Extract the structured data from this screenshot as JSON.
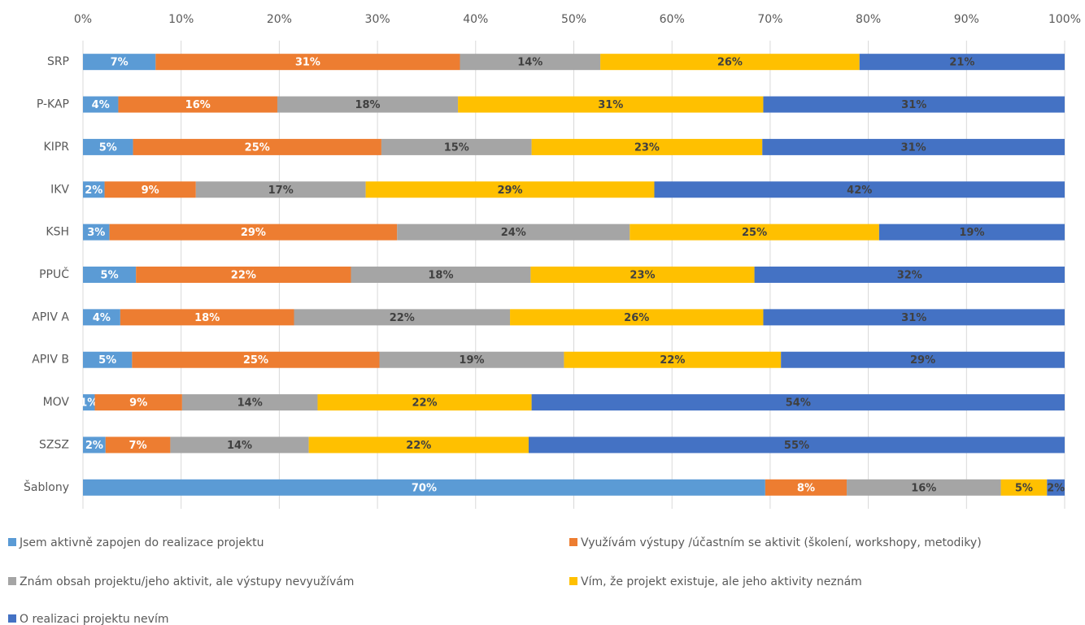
{
  "chart_data": {
    "type": "stacked_barh",
    "categories": [
      "SRP",
      "P-KAP",
      "KIPR",
      "IKV",
      "KSH",
      "PPUČ",
      "APIV A",
      "APIV B",
      "MOV",
      "SZSZ",
      "Šablony"
    ],
    "series": [
      {
        "name": "Jsem aktivně zapojen do realizace projektu",
        "color": "#5b9bd5",
        "label_color": "#ffffff",
        "values": [
          7.4,
          3.6,
          5.1,
          2.2,
          2.7,
          5.4,
          3.8,
          5.0,
          1.2,
          2.3,
          69.5
        ],
        "value_labels": [
          "7%",
          "4%",
          "5%",
          "2%",
          "3%",
          "5%",
          "4%",
          "5%",
          "1%",
          "2%",
          "70%"
        ]
      },
      {
        "name": "Využívám výstupy /účastním se aktivit (školení, workshopy, metodiky)",
        "color": "#ed7d31",
        "label_color": "#ffffff",
        "values": [
          31.0,
          16.2,
          25.3,
          9.3,
          29.3,
          21.9,
          17.7,
          25.2,
          8.9,
          6.6,
          8.3
        ],
        "value_labels": [
          "31%",
          "16%",
          "25%",
          "9%",
          "29%",
          "22%",
          "18%",
          "25%",
          "9%",
          "7%",
          "8%"
        ]
      },
      {
        "name": "Znám obsah projektu/jeho aktivit, ale výstupy nevyužívám",
        "color": "#a5a5a5",
        "label_color": "#404040",
        "values": [
          14.3,
          18.4,
          15.3,
          17.3,
          23.7,
          18.3,
          22.0,
          18.8,
          13.8,
          14.1,
          15.7
        ],
        "value_labels": [
          "14%",
          "18%",
          "15%",
          "17%",
          "24%",
          "18%",
          "22%",
          "19%",
          "14%",
          "14%",
          "16%"
        ]
      },
      {
        "name": "Vím, že projekt existuje, ale jeho aktivity neznám",
        "color": "#ffc000",
        "label_color": "#404040",
        "values": [
          26.4,
          31.1,
          23.5,
          29.4,
          25.4,
          22.8,
          25.8,
          22.1,
          21.8,
          22.4,
          4.7
        ],
        "value_labels": [
          "26%",
          "31%",
          "23%",
          "29%",
          "25%",
          "23%",
          "26%",
          "22%",
          "22%",
          "22%",
          "5%"
        ]
      },
      {
        "name": "O realizaci projektu nevím",
        "color": "#4472c4",
        "label_color": "#404040",
        "values": [
          20.9,
          30.7,
          30.8,
          41.8,
          18.9,
          31.6,
          30.7,
          28.9,
          54.3,
          54.6,
          1.8
        ],
        "value_labels": [
          "21%",
          "31%",
          "31%",
          "42%",
          "19%",
          "32%",
          "31%",
          "29%",
          "54%",
          "55%",
          "2%"
        ]
      }
    ],
    "xlim": [
      0,
      100
    ],
    "xticks": [
      {
        "value": 0,
        "label": "0%"
      },
      {
        "value": 10,
        "label": "10%"
      },
      {
        "value": 20,
        "label": "20%"
      },
      {
        "value": 30,
        "label": "30%"
      },
      {
        "value": 40,
        "label": "40%"
      },
      {
        "value": 50,
        "label": "50%"
      },
      {
        "value": 60,
        "label": "60%"
      },
      {
        "value": 70,
        "label": "70%"
      },
      {
        "value": 80,
        "label": "80%"
      },
      {
        "value": 90,
        "label": "90%"
      },
      {
        "value": 100,
        "label": "100%"
      }
    ],
    "grid": true,
    "legend": "bottom"
  }
}
